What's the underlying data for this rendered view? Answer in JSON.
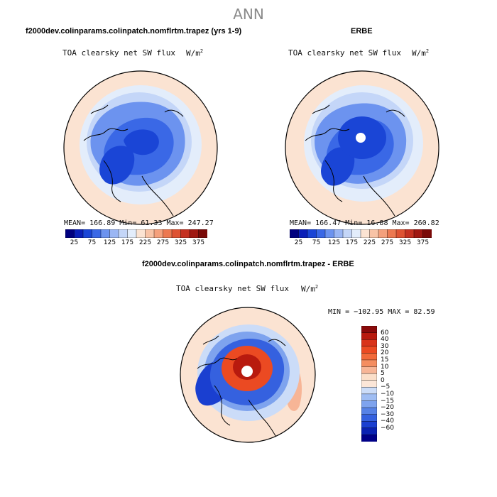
{
  "page": {
    "title": "ANN"
  },
  "panels": {
    "model": {
      "title": "f2000dev.colinparams.colinpatch.nomflrtm.trapez (yrs 1-9)",
      "variable": "TOA clearsky net SW flux",
      "units_base": "W/m",
      "units_exp": "2",
      "stats": "MEAN= 166.89  Min=  61.33  Max= 247.27"
    },
    "obs": {
      "title": "ERBE",
      "variable": "TOA clearsky net SW flux",
      "units_base": "W/m",
      "units_exp": "2",
      "stats": "MEAN= 166.47  Min=  16.88  Max= 260.82"
    },
    "diff": {
      "title": "f2000dev.colinparams.colinpatch.nomflrtm.trapez - ERBE",
      "variable": "TOA clearsky net SW flux",
      "units_base": "W/m",
      "units_exp": "2",
      "stats": "MIN = −102.95 MAX =  82.59"
    }
  },
  "colorbars": {
    "abs_ticks": [
      "25",
      "75",
      "125",
      "175",
      "225",
      "275",
      "325",
      "375"
    ],
    "abs_colors": [
      "#00007f",
      "#0a1fb8",
      "#1a45d6",
      "#3a68e6",
      "#6c93ef",
      "#9ab6f4",
      "#c4d6f8",
      "#e3edfb",
      "#fbe3d2",
      "#f8c3a6",
      "#f4a07c",
      "#ec7850",
      "#de5232",
      "#c43020",
      "#a01812",
      "#7a0a08"
    ],
    "diff_labels": [
      "60",
      "40",
      "30",
      "20",
      "15",
      "10",
      "5",
      "0",
      "−5",
      "−10",
      "−15",
      "−20",
      "−30",
      "−40",
      "−60"
    ],
    "diff_colors": [
      "#8a0a0a",
      "#b81a0e",
      "#d9331a",
      "#eb4a22",
      "#f26a3a",
      "#f48d60",
      "#f7b596",
      "#fbdfc9",
      "#fbe6d8",
      "#cbdcf8",
      "#9fbdf3",
      "#7ea3ee",
      "#5782e6",
      "#3561df",
      "#1a3fd0",
      "#0a22b2",
      "#000088"
    ]
  },
  "chart_data": [
    {
      "type": "heatmap",
      "title": "f2000dev.colinparams.colinpatch.nomflrtm.trapez (yrs 1-9)",
      "subtitle": "TOA clearsky net SW flux",
      "units": "W/m2",
      "projection": "polar stereographic, north pole",
      "stats": {
        "mean": 166.89,
        "min": 61.33,
        "max": 247.27
      },
      "colorbar": {
        "ticks": [
          25,
          75,
          125,
          175,
          225,
          275,
          325,
          375
        ],
        "range": [
          0,
          400
        ]
      },
      "pattern": [
        {
          "region": "outer rim (low latitudes)",
          "value": 240
        },
        {
          "region": "mid latitudes",
          "value": 205
        },
        {
          "region": "subpolar ring",
          "value": 165
        },
        {
          "region": "Arctic basin / Greenland",
          "value": 110
        },
        {
          "region": "polar core",
          "value": 70
        }
      ]
    },
    {
      "type": "heatmap",
      "title": "ERBE",
      "subtitle": "TOA clearsky net SW flux",
      "units": "W/m2",
      "projection": "polar stereographic, north pole",
      "stats": {
        "mean": 166.47,
        "min": 16.88,
        "max": 260.82
      },
      "colorbar": {
        "ticks": [
          25,
          75,
          125,
          175,
          225,
          275,
          325,
          375
        ],
        "range": [
          0,
          400
        ]
      },
      "pattern": [
        {
          "region": "outer rim (low latitudes)",
          "value": 245
        },
        {
          "region": "mid latitudes",
          "value": 205
        },
        {
          "region": "subpolar ring",
          "value": 160
        },
        {
          "region": "Arctic basin / Greenland",
          "value": 105
        },
        {
          "region": "polar core",
          "value": 60
        },
        {
          "region": "pole (missing)",
          "value": null
        }
      ]
    },
    {
      "type": "heatmap",
      "title": "f2000dev.colinparams.colinpatch.nomflrtm.trapez - ERBE",
      "subtitle": "TOA clearsky net SW flux",
      "units": "W/m2",
      "projection": "polar stereographic, north pole",
      "stats": {
        "min": -102.95,
        "max": 82.59
      },
      "colorbar": {
        "levels": [
          60,
          40,
          30,
          20,
          15,
          10,
          5,
          0,
          -5,
          -10,
          -15,
          -20,
          -30,
          -40,
          -60
        ]
      },
      "pattern": [
        {
          "region": "outer rim",
          "value": 2
        },
        {
          "region": "mid latitudes",
          "value": -8
        },
        {
          "region": "subpolar ring",
          "value": -35
        },
        {
          "region": "Arctic basin",
          "value": 45
        },
        {
          "region": "polar core",
          "value": 70
        },
        {
          "region": "pole (missing)",
          "value": null
        }
      ]
    }
  ]
}
